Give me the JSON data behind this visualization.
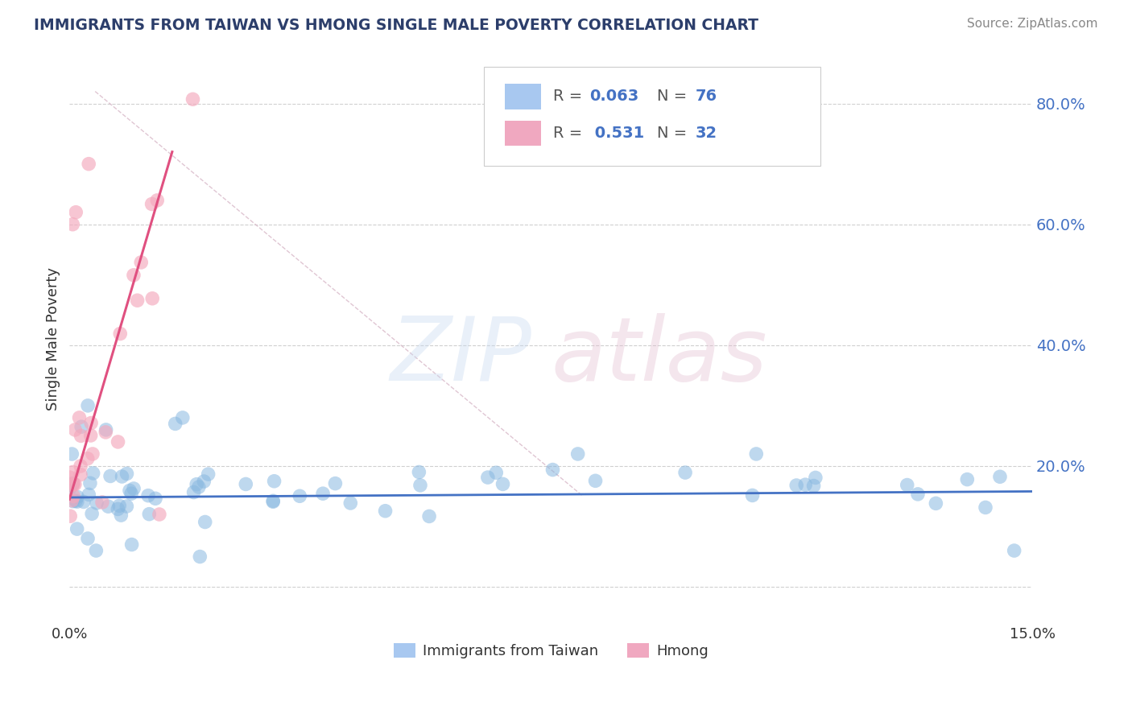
{
  "title": "IMMIGRANTS FROM TAIWAN VS HMONG SINGLE MALE POVERTY CORRELATION CHART",
  "source": "Source: ZipAtlas.com",
  "ylabel": "Single Male Poverty",
  "y_ticks": [
    0.0,
    0.2,
    0.4,
    0.6,
    0.8
  ],
  "xlim": [
    0.0,
    0.15
  ],
  "ylim": [
    -0.06,
    0.88
  ],
  "legend_labels_bottom": [
    "Immigrants from Taiwan",
    "Hmong"
  ],
  "taiwan_color": "#89b8e0",
  "hmong_color": "#f4a8bc",
  "taiwan_line_color": "#4472c4",
  "hmong_line_color": "#e05080",
  "bg_color": "#ffffff",
  "grid_color": "#d0d0d0",
  "title_color": "#2c3e6b",
  "legend_box_color": "#a8c8f0",
  "legend_box_color2": "#f0a8c0",
  "diag_line_color": "#d8b8c8",
  "taiwan_R": "0.063",
  "taiwan_N": "76",
  "hmong_R": "0.531",
  "hmong_N": "32",
  "taiwan_trend_x": [
    0.0,
    0.15
  ],
  "taiwan_trend_y": [
    0.148,
    0.158
  ],
  "hmong_trend_x": [
    0.0,
    0.016
  ],
  "hmong_trend_y": [
    0.145,
    0.72
  ]
}
